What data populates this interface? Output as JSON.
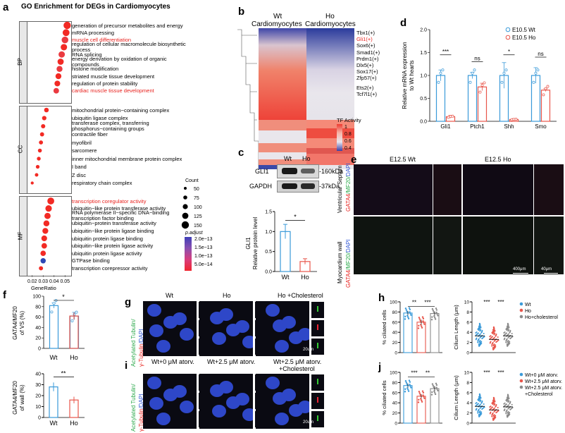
{
  "panels": {
    "a": "a",
    "b": "b",
    "c": "c",
    "d": "d",
    "e": "e",
    "f": "f",
    "g": "g",
    "h": "h",
    "i": "i",
    "j": "j"
  },
  "a": {
    "title": "GO Enrichment for DEGs in Cardiomyocytes",
    "groups": [
      "BP",
      "CC",
      "MF"
    ],
    "xlabel": "GeneRatio",
    "xticks": [
      "0.02",
      "0.03",
      "0.04",
      "0.05"
    ],
    "terms": [
      {
        "label": "generation of precursor metabolites and energy",
        "ratio": 0.052,
        "count": 150,
        "padj": 5e-14,
        "hl": false
      },
      {
        "label": "mRNA processing",
        "ratio": 0.051,
        "count": 140,
        "padj": 5e-14,
        "hl": false
      },
      {
        "label": "muscle cell differentiation",
        "ratio": 0.05,
        "count": 135,
        "padj": 6e-14,
        "hl": true
      },
      {
        "label": "regulation of cellular macromolecule biosynthetic process",
        "ratio": 0.049,
        "count": 130,
        "padj": 5e-14,
        "hl": false
      },
      {
        "label": "RNA splicing",
        "ratio": 0.047,
        "count": 128,
        "padj": 7e-14,
        "hl": false
      },
      {
        "label": "energy derivation by oxidation of organic compounds",
        "ratio": 0.046,
        "count": 125,
        "padj": 5e-14,
        "hl": false
      },
      {
        "label": "histone modification",
        "ratio": 0.045,
        "count": 120,
        "padj": 6e-14,
        "hl": false
      },
      {
        "label": "striated muscle tissue development",
        "ratio": 0.044,
        "count": 118,
        "padj": 5e-14,
        "hl": false
      },
      {
        "label": "regulation of protein stability",
        "ratio": 0.043,
        "count": 115,
        "padj": 5e-14,
        "hl": false
      },
      {
        "label": "cardiac muscle tissue development",
        "ratio": 0.042,
        "count": 110,
        "padj": 6e-14,
        "hl": true
      },
      {
        "label": "mitochondrial protein−containing complex",
        "ratio": 0.033,
        "count": 90,
        "padj": 5e-14,
        "hl": false
      },
      {
        "label": "ubiquitin ligase complex",
        "ratio": 0.031,
        "count": 85,
        "padj": 5e-14,
        "hl": false
      },
      {
        "label": "transferase complex, transferring phosphorus−containing groups",
        "ratio": 0.03,
        "count": 82,
        "padj": 5e-14,
        "hl": false
      },
      {
        "label": "contractile fiber",
        "ratio": 0.029,
        "count": 80,
        "padj": 5e-14,
        "hl": false
      },
      {
        "label": "myofibril",
        "ratio": 0.028,
        "count": 78,
        "padj": 5e-14,
        "hl": false
      },
      {
        "label": "sarcomere",
        "ratio": 0.027,
        "count": 75,
        "padj": 5e-14,
        "hl": false
      },
      {
        "label": "inner mitochondrial membrane protein complex",
        "ratio": 0.026,
        "count": 72,
        "padj": 5e-14,
        "hl": false
      },
      {
        "label": "I band",
        "ratio": 0.025,
        "count": 70,
        "padj": 5e-14,
        "hl": false
      },
      {
        "label": "Z disc",
        "ratio": 0.024,
        "count": 65,
        "padj": 5e-14,
        "hl": false
      },
      {
        "label": "respiratory chain complex",
        "ratio": 0.02,
        "count": 55,
        "padj": 5e-14,
        "hl": false
      },
      {
        "label": "transcription coregulator activity",
        "ratio": 0.037,
        "count": 140,
        "padj": 5e-14,
        "hl": true
      },
      {
        "label": "ubiquitin−like protein transferase activity",
        "ratio": 0.035,
        "count": 130,
        "padj": 5e-14,
        "hl": false
      },
      {
        "label": "RNA polymerase II−specific DNA−binding transcription factor binding",
        "ratio": 0.034,
        "count": 125,
        "padj": 5e-14,
        "hl": false
      },
      {
        "label": "ubiquitin−protein transferase activity",
        "ratio": 0.033,
        "count": 120,
        "padj": 5e-14,
        "hl": false
      },
      {
        "label": "ubiquitin−like protein ligase binding",
        "ratio": 0.032,
        "count": 118,
        "padj": 5e-14,
        "hl": false
      },
      {
        "label": "ubiquitin protein ligase binding",
        "ratio": 0.031,
        "count": 115,
        "padj": 5e-14,
        "hl": false
      },
      {
        "label": "ubiquitin−like protein ligase activity",
        "ratio": 0.031,
        "count": 110,
        "padj": 5e-14,
        "hl": false
      },
      {
        "label": "ubiquitin protein ligase activity",
        "ratio": 0.03,
        "count": 108,
        "padj": 5e-14,
        "hl": false
      },
      {
        "label": "GTPase binding",
        "ratio": 0.03,
        "count": 105,
        "padj": 2e-13,
        "hl": false
      },
      {
        "label": "transcription corepressor activity",
        "ratio": 0.028,
        "count": 80,
        "padj": 5e-14,
        "hl": false
      }
    ],
    "count_title": "Count",
    "count_values": [
      "50",
      "75",
      "100",
      "125",
      "150"
    ],
    "padj_title": "p.adjust",
    "padj_ticks": [
      "2.0e−13",
      "1.5e−13",
      "1.0e−13",
      "5.0e−14"
    ]
  },
  "b": {
    "col1": "Wt",
    "col1b": "Cardiomyocytes",
    "col2": "Ho",
    "col2b": "Cardiomyocytes",
    "tfs": [
      {
        "label": "Tbx1(+)",
        "hl": false
      },
      {
        "label": "Gli1(+)",
        "hl": true
      },
      {
        "label": "Sox6(+)",
        "hl": false
      },
      {
        "label": "Smad1(+)",
        "hl": false
      },
      {
        "label": "Prdm1(+)",
        "hl": false
      },
      {
        "label": "Dlx5(+)",
        "hl": false
      },
      {
        "label": "Sox17(+)",
        "hl": false
      },
      {
        "label": "Zfp57(+)",
        "hl": false
      },
      {
        "label": "Ets2(+)",
        "hl": false
      },
      {
        "label": "Tcf7l1(+)",
        "hl": false
      }
    ],
    "legend_title": "TF Activity",
    "legend_ticks": [
      "1",
      "0.8",
      "0.6",
      "0.4"
    ]
  },
  "c": {
    "wt": "Wt",
    "ho": "Ho",
    "gli1": "GLI1",
    "gapdh": "GAPDH",
    "kda1": "-160kDa",
    "kda2": "-37kDa",
    "ylabel1": "GLI1",
    "ylabel2": "Relative protein level",
    "yticks": [
      "0.0",
      "0.5",
      "1.0",
      "1.5"
    ],
    "sig": "*",
    "chart_data": {
      "type": "bar",
      "categories": [
        "Wt",
        "Ho"
      ],
      "values": [
        1.0,
        0.25
      ],
      "errors": [
        0.18,
        0.07
      ],
      "ylim": [
        0,
        1.5
      ]
    }
  },
  "d": {
    "ylabel1": "Relative mRNA expression",
    "ylabel2": "to Wt hearts",
    "legend": [
      "E10.5 Wt",
      "E10.5 Ho"
    ],
    "yticks": [
      "0.0",
      "0.5",
      "1.0",
      "1.5",
      "2.0"
    ],
    "sig": [
      "***",
      "ns",
      "*",
      "ns"
    ],
    "chart_data": {
      "type": "bar",
      "categories": [
        "Gli1",
        "Ptch1",
        "Shh",
        "Smo"
      ],
      "series": [
        {
          "name": "E10.5 Wt",
          "values": [
            1.0,
            1.0,
            1.0,
            1.0
          ],
          "errors": [
            0.12,
            0.07,
            0.28,
            0.17
          ]
        },
        {
          "name": "E10.5 Ho",
          "values": [
            0.1,
            0.75,
            0.04,
            0.68
          ],
          "errors": [
            0.03,
            0.08,
            0.02,
            0.03
          ]
        }
      ],
      "ylim": [
        0,
        2.0
      ]
    }
  },
  "e": {
    "wt": "E12.5 Wt",
    "ho": "E12.5 Ho",
    "row1a": "Ventricular Septum",
    "row1b_g": "GATA4",
    "row1b_m": "/MF20/",
    "row1b_d": "DAPI",
    "row2a": "Myocardium wall",
    "row2b_g": "GATA4",
    "row2b_m": "/MF20/",
    "row2b_d": "DAPI",
    "scale1": "400μm",
    "scale2": "40μm"
  },
  "f": {
    "top_ylabel1": "GATA4/MF20",
    "top_ylabel2": "of VS (%)",
    "bot_ylabel1": "GATA4/MF20",
    "bot_ylabel2": "of wall (%)",
    "top_yticks": [
      "0",
      "20",
      "40",
      "60",
      "80",
      "100"
    ],
    "bot_yticks": [
      "0",
      "10",
      "20",
      "30",
      "40"
    ],
    "top_sig": "*",
    "bot_sig": "**",
    "chart_data": [
      {
        "type": "bar",
        "categories": [
          "Wt",
          "Ho"
        ],
        "values": [
          82,
          62
        ],
        "errors": [
          5,
          7
        ],
        "ylim": [
          0,
          100
        ]
      },
      {
        "type": "bar",
        "categories": [
          "Wt",
          "Ho"
        ],
        "values": [
          28,
          16
        ],
        "errors": [
          4,
          3
        ],
        "ylim": [
          0,
          40
        ]
      }
    ]
  },
  "g": {
    "ylabel_a": "Acetylated Tubulin/",
    "ylabel_g": "γ-Tubulin",
    "ylabel_d": "/DAPI",
    "cols": [
      "Wt",
      "Ho",
      "Ho +Cholesterol"
    ],
    "scale1": "20um",
    "scale2": "5um"
  },
  "i": {
    "ylabel_a": "Acetylated Tubulin/",
    "ylabel_g": "γ-Tubulin",
    "ylabel_d": "/DAPI",
    "cols": [
      "Wt+0 μM atorv.",
      "Wt+2.5 μM atorv.",
      "Wt+2.5 μM atorv."
    ],
    "col3b": "+Cholesterol",
    "scale1": "20um",
    "scale2": "5um"
  },
  "h": {
    "ylabel_left": "% ciliated cells",
    "ylabel_right": "Cilium Length (μm)",
    "left_yticks": [
      "0",
      "20",
      "40",
      "60",
      "80",
      "100"
    ],
    "right_yticks": [
      "0",
      "2",
      "4",
      "6",
      "8",
      "10"
    ],
    "left_sig": [
      "**",
      "***"
    ],
    "right_sig": [
      "***",
      "***"
    ],
    "legend": [
      "Wt",
      "Ho",
      "Ho+cholesterol"
    ],
    "chart_data": [
      {
        "type": "bar",
        "categories": [
          "Wt",
          "Ho",
          "Ho+cholesterol"
        ],
        "values": [
          78,
          60,
          77
        ],
        "errors": [
          4,
          5,
          4
        ],
        "ylim": [
          0,
          100
        ]
      },
      {
        "type": "scatter",
        "categories": [
          "Wt",
          "Ho",
          "Ho+cholesterol"
        ],
        "values": [
          3.3,
          2.6,
          3.3
        ],
        "ylim": [
          0,
          10
        ]
      }
    ]
  },
  "j": {
    "ylabel_left": "% ciliated cells",
    "ylabel_right": "Cilium Length (μm)",
    "left_yticks": [
      "0",
      "20",
      "40",
      "60",
      "80",
      "100"
    ],
    "right_yticks": [
      "0",
      "2",
      "4",
      "6",
      "8",
      "10"
    ],
    "left_sig": [
      "***",
      "**"
    ],
    "right_sig": [
      "***",
      "***"
    ],
    "legend": [
      "Wt+0 μM atorv.",
      "Wt+2.5 μM atorv.",
      "Wt+2.5 μM atorv.",
      "+Cholesterol"
    ],
    "chart_data": [
      {
        "type": "bar",
        "categories": [
          "Wt+0 μM atorv.",
          "Wt+2.5 μM atorv.",
          "Wt+2.5 μM atorv. +Cholesterol"
        ],
        "values": [
          74,
          53,
          68
        ],
        "errors": [
          4,
          4,
          5
        ],
        "ylim": [
          0,
          100
        ]
      },
      {
        "type": "scatter",
        "categories": [
          "Wt+0 μM atorv.",
          "Wt+2.5 μM atorv.",
          "Wt+2.5 μM atorv. +Cholesterol"
        ],
        "values": [
          3.3,
          2.6,
          3.2
        ],
        "ylim": [
          0,
          10
        ]
      }
    ]
  },
  "colors": {
    "wt": "#3a9ad9",
    "ho": "#e8554a",
    "chol": "#8a8a8a",
    "accent_red": "#e8231f"
  }
}
